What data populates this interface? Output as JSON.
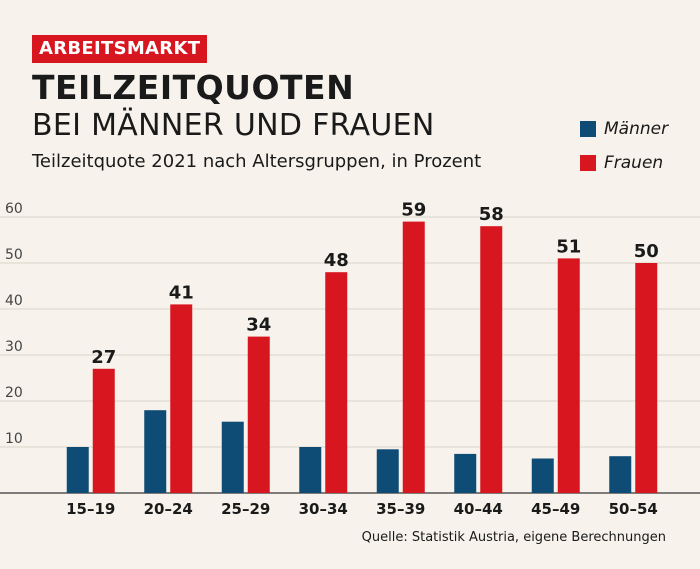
{
  "header": {
    "tag": "ARBEITSMARKT",
    "title": "TEILZEITQUOTEN",
    "subtitle1": "BEI MÄNNER UND FRAUEN",
    "subtitle2": "Teilzeitquote 2021 nach Altersgruppen, in Prozent"
  },
  "source": "Quelle: Statistik Austria, eigene Berechnungen",
  "colors": {
    "men": "#0f4c75",
    "women": "#d8161f",
    "grid": "#d9d4cc"
  },
  "chart_data": {
    "type": "bar",
    "categories": [
      "15–19",
      "20–24",
      "25–29",
      "30–34",
      "35–39",
      "40–44",
      "45–49",
      "50–54"
    ],
    "series": [
      {
        "name": "Männer",
        "values": [
          10,
          18,
          15.5,
          10,
          9.5,
          8.5,
          7.5,
          8
        ]
      },
      {
        "name": "Frauen",
        "values": [
          27,
          41,
          34,
          48,
          59,
          58,
          51,
          50
        ],
        "labels": [
          "27",
          "41",
          "34",
          "48",
          "59",
          "58",
          "51",
          "50"
        ]
      }
    ],
    "yticks": [
      "10",
      "20",
      "30",
      "40",
      "50",
      "60"
    ],
    "ylim": [
      0,
      60
    ],
    "grid": true,
    "legend": "top-right"
  }
}
